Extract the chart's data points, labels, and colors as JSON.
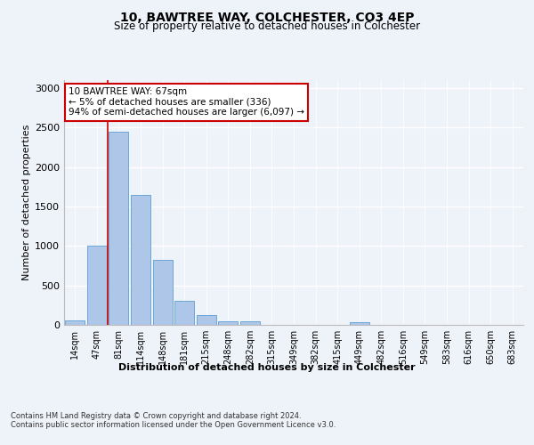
{
  "title_line1": "10, BAWTREE WAY, COLCHESTER, CO3 4EP",
  "title_line2": "Size of property relative to detached houses in Colchester",
  "xlabel": "Distribution of detached houses by size in Colchester",
  "ylabel": "Number of detached properties",
  "categories": [
    "14sqm",
    "47sqm",
    "81sqm",
    "114sqm",
    "148sqm",
    "181sqm",
    "215sqm",
    "248sqm",
    "282sqm",
    "315sqm",
    "349sqm",
    "382sqm",
    "415sqm",
    "449sqm",
    "482sqm",
    "516sqm",
    "549sqm",
    "583sqm",
    "616sqm",
    "650sqm",
    "683sqm"
  ],
  "values": [
    60,
    1000,
    2450,
    1650,
    820,
    300,
    120,
    50,
    45,
    0,
    0,
    0,
    0,
    30,
    0,
    0,
    0,
    0,
    0,
    0,
    0
  ],
  "bar_color": "#aec6e8",
  "bar_edgecolor": "#5a9fd4",
  "vline_color": "#cc0000",
  "annotation_text": "10 BAWTREE WAY: 67sqm\n← 5% of detached houses are smaller (336)\n94% of semi-detached houses are larger (6,097) →",
  "annotation_box_color": "#ffffff",
  "annotation_box_edgecolor": "#cc0000",
  "ylim": [
    0,
    3100
  ],
  "yticks": [
    0,
    500,
    1000,
    1500,
    2000,
    2500,
    3000
  ],
  "background_color": "#eef2f9",
  "axes_background": "#eef2f9",
  "grid_color": "#ffffff",
  "footer_line1": "Contains HM Land Registry data © Crown copyright and database right 2024.",
  "footer_line2": "Contains public sector information licensed under the Open Government Licence v3.0."
}
